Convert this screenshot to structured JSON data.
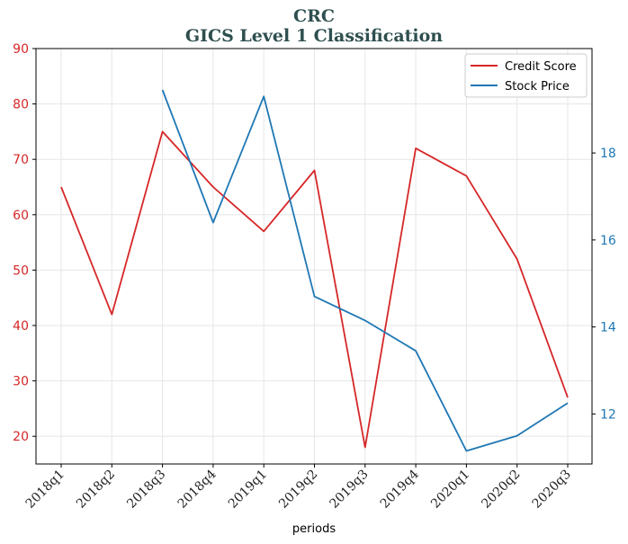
{
  "chart_data": {
    "type": "line",
    "title": "CRC",
    "subtitle": "GICS Level 1 Classification",
    "xlabel": "periods",
    "categories": [
      "2018q1",
      "2018q2",
      "2018q3",
      "2018q4",
      "2019q1",
      "2019q2",
      "2019q3",
      "2019q4",
      "2020q1",
      "2020q2",
      "2020q3"
    ],
    "left_axis": {
      "ylim": [
        15,
        90
      ],
      "ticks": [
        20,
        30,
        40,
        50,
        60,
        70,
        80,
        90
      ],
      "color": "#d62728"
    },
    "right_axis": {
      "ylim": [
        10.85,
        20.4
      ],
      "ticks": [
        12,
        14,
        16,
        18
      ],
      "color": "#1f77b4"
    },
    "series": [
      {
        "name": "Credit Score",
        "axis": "left",
        "color": "#d62728",
        "values": [
          65,
          42,
          75,
          65,
          57,
          68,
          18,
          72,
          67,
          52,
          27
        ]
      },
      {
        "name": "Stock Price",
        "axis": "right",
        "color": "#1f77b4",
        "values": [
          null,
          null,
          19.45,
          16.4,
          19.3,
          14.7,
          14.15,
          13.45,
          11.15,
          11.5,
          12.25
        ]
      }
    ],
    "legend_position": "top-right",
    "grid": true
  }
}
